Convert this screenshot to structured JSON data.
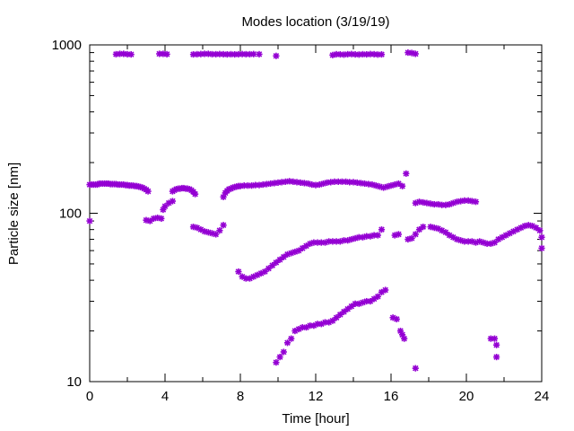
{
  "chart_data": {
    "type": "scatter",
    "title": "Modes location (3/19/19)",
    "xlabel": "Time [hour]",
    "ylabel": "Particle size [nm]",
    "xlim": [
      0,
      24
    ],
    "ylim": [
      10,
      1000
    ],
    "yscale": "log",
    "xticks": [
      0,
      4,
      8,
      12,
      16,
      20,
      24
    ],
    "yticks": [
      10,
      100,
      1000
    ],
    "grid": false,
    "marker": "asterisk",
    "color": "#9400D3",
    "series": [
      {
        "points": [
          [
            0.0,
            148
          ],
          [
            0.1,
            148
          ],
          [
            0.2,
            148
          ],
          [
            0.3,
            148
          ],
          [
            0.4,
            148
          ],
          [
            0.5,
            150
          ],
          [
            0.6,
            150
          ],
          [
            0.7,
            150
          ],
          [
            0.8,
            150
          ],
          [
            0.9,
            150
          ],
          [
            1.0,
            150
          ],
          [
            1.1,
            149
          ],
          [
            1.2,
            149
          ],
          [
            1.3,
            149
          ],
          [
            1.4,
            149
          ],
          [
            1.5,
            148
          ],
          [
            1.6,
            148
          ],
          [
            1.7,
            148
          ],
          [
            1.8,
            148
          ],
          [
            1.9,
            147
          ],
          [
            2.0,
            147
          ],
          [
            2.1,
            146
          ],
          [
            2.2,
            146
          ],
          [
            2.3,
            146
          ],
          [
            2.4,
            145
          ],
          [
            2.5,
            145
          ],
          [
            2.6,
            144
          ],
          [
            2.7,
            143
          ],
          [
            2.8,
            142
          ],
          [
            2.9,
            140
          ],
          [
            3.0,
            138
          ],
          [
            3.1,
            135
          ],
          [
            4.4,
            135
          ],
          [
            4.5,
            137
          ],
          [
            4.6,
            139
          ],
          [
            4.7,
            140
          ],
          [
            4.8,
            140
          ],
          [
            4.9,
            141
          ],
          [
            5.0,
            141
          ],
          [
            5.1,
            140
          ],
          [
            5.2,
            140
          ],
          [
            5.3,
            139
          ],
          [
            5.4,
            137
          ],
          [
            5.5,
            134
          ],
          [
            5.6,
            130
          ],
          [
            7.1,
            125
          ],
          [
            7.2,
            132
          ],
          [
            7.3,
            136
          ],
          [
            7.4,
            139
          ],
          [
            7.5,
            140
          ],
          [
            7.6,
            142
          ],
          [
            7.7,
            143
          ],
          [
            7.8,
            144
          ],
          [
            7.9,
            145
          ],
          [
            8.0,
            145
          ],
          [
            8.2,
            146
          ],
          [
            8.4,
            146
          ],
          [
            8.6,
            146
          ],
          [
            8.8,
            147
          ],
          [
            9.0,
            147
          ],
          [
            9.2,
            148
          ],
          [
            9.4,
            149
          ],
          [
            9.6,
            150
          ],
          [
            9.8,
            151
          ],
          [
            10.0,
            152
          ],
          [
            10.2,
            153
          ],
          [
            10.4,
            154
          ],
          [
            10.6,
            155
          ],
          [
            10.8,
            154
          ],
          [
            11.0,
            153
          ],
          [
            11.2,
            152
          ],
          [
            11.4,
            151
          ],
          [
            11.6,
            150
          ],
          [
            11.8,
            148
          ],
          [
            12.0,
            147
          ],
          [
            12.2,
            148
          ],
          [
            12.4,
            150
          ],
          [
            12.6,
            152
          ],
          [
            12.8,
            153
          ],
          [
            13.0,
            154
          ],
          [
            13.2,
            154
          ],
          [
            13.4,
            154
          ],
          [
            13.6,
            154
          ],
          [
            13.8,
            153
          ],
          [
            14.0,
            153
          ],
          [
            14.2,
            152
          ],
          [
            14.4,
            151
          ],
          [
            14.6,
            150
          ],
          [
            14.8,
            149
          ],
          [
            15.0,
            148
          ],
          [
            15.2,
            146
          ],
          [
            15.4,
            144
          ],
          [
            15.6,
            142
          ],
          [
            15.8,
            144
          ],
          [
            16.0,
            146
          ],
          [
            16.2,
            148
          ],
          [
            16.4,
            150
          ],
          [
            16.6,
            145
          ],
          [
            16.8,
            172
          ],
          [
            17.3,
            115
          ],
          [
            17.5,
            117
          ],
          [
            17.7,
            116
          ],
          [
            17.9,
            115
          ],
          [
            18.1,
            114
          ],
          [
            18.3,
            113
          ],
          [
            18.5,
            113
          ],
          [
            18.7,
            112
          ],
          [
            18.9,
            112
          ],
          [
            19.1,
            113
          ],
          [
            19.3,
            115
          ],
          [
            19.5,
            117
          ],
          [
            19.7,
            118
          ],
          [
            19.9,
            119
          ],
          [
            20.1,
            119
          ],
          [
            20.3,
            118
          ],
          [
            20.5,
            117
          ]
        ]
      },
      {
        "points": [
          [
            0.0,
            90
          ],
          [
            3.0,
            91
          ],
          [
            3.2,
            90
          ],
          [
            3.4,
            93
          ],
          [
            3.6,
            94
          ],
          [
            3.8,
            93
          ],
          [
            3.9,
            105
          ],
          [
            4.0,
            110
          ],
          [
            4.2,
            115
          ],
          [
            4.4,
            118
          ],
          [
            5.5,
            83
          ],
          [
            5.7,
            82
          ],
          [
            5.9,
            80
          ],
          [
            6.1,
            78
          ],
          [
            6.3,
            77
          ],
          [
            6.5,
            76
          ],
          [
            6.7,
            75
          ],
          [
            6.9,
            79
          ],
          [
            7.1,
            85
          ],
          [
            7.9,
            45
          ],
          [
            8.1,
            42
          ],
          [
            8.3,
            41
          ],
          [
            8.5,
            41
          ],
          [
            8.7,
            42
          ],
          [
            8.9,
            43
          ],
          [
            9.1,
            44
          ],
          [
            9.3,
            45
          ],
          [
            9.5,
            47
          ],
          [
            9.7,
            49
          ],
          [
            9.9,
            51
          ],
          [
            10.1,
            53
          ],
          [
            10.3,
            55
          ],
          [
            10.5,
            57
          ],
          [
            10.7,
            58
          ],
          [
            10.9,
            59
          ],
          [
            11.1,
            60
          ],
          [
            11.3,
            62
          ],
          [
            11.5,
            64
          ],
          [
            11.7,
            66
          ],
          [
            11.9,
            67
          ],
          [
            12.1,
            67
          ],
          [
            12.3,
            67
          ],
          [
            12.5,
            67
          ],
          [
            12.7,
            68
          ],
          [
            12.9,
            68
          ],
          [
            13.1,
            68
          ],
          [
            13.3,
            68
          ],
          [
            13.5,
            69
          ],
          [
            13.7,
            69
          ],
          [
            13.9,
            70
          ],
          [
            14.1,
            71
          ],
          [
            14.3,
            72
          ],
          [
            14.5,
            72
          ],
          [
            14.7,
            73
          ],
          [
            14.9,
            73
          ],
          [
            15.1,
            74
          ],
          [
            15.3,
            74
          ],
          [
            15.5,
            80
          ],
          [
            16.2,
            74
          ],
          [
            16.4,
            75
          ],
          [
            16.9,
            70
          ],
          [
            17.1,
            71
          ],
          [
            17.3,
            75
          ],
          [
            17.5,
            80
          ],
          [
            17.7,
            83
          ],
          [
            18.1,
            83
          ],
          [
            18.3,
            82
          ],
          [
            18.5,
            81
          ],
          [
            18.7,
            79
          ],
          [
            18.9,
            77
          ],
          [
            19.1,
            74
          ],
          [
            19.3,
            72
          ],
          [
            19.5,
            70
          ],
          [
            19.7,
            69
          ],
          [
            19.9,
            68
          ],
          [
            20.1,
            68
          ],
          [
            20.3,
            68
          ],
          [
            20.5,
            67
          ],
          [
            20.7,
            68
          ],
          [
            20.9,
            67
          ],
          [
            21.1,
            66
          ],
          [
            21.3,
            66
          ],
          [
            21.5,
            67
          ],
          [
            21.7,
            70
          ],
          [
            21.9,
            72
          ],
          [
            22.1,
            74
          ],
          [
            22.3,
            76
          ],
          [
            22.5,
            78
          ],
          [
            22.7,
            80
          ],
          [
            22.9,
            82
          ],
          [
            23.1,
            84
          ],
          [
            23.3,
            85
          ],
          [
            23.5,
            84
          ],
          [
            23.7,
            82
          ],
          [
            23.9,
            79
          ],
          [
            24.0,
            72
          ],
          [
            24.0,
            62
          ]
        ]
      },
      {
        "points": [
          [
            9.9,
            13
          ],
          [
            10.1,
            14
          ],
          [
            10.3,
            15
          ],
          [
            10.5,
            17
          ],
          [
            10.7,
            18
          ],
          [
            10.9,
            20
          ],
          [
            11.1,
            20.5
          ],
          [
            11.3,
            21
          ],
          [
            11.5,
            21
          ],
          [
            11.7,
            21.5
          ],
          [
            11.9,
            21.5
          ],
          [
            12.1,
            22
          ],
          [
            12.3,
            22
          ],
          [
            12.5,
            22.5
          ],
          [
            12.7,
            22.5
          ],
          [
            12.9,
            23
          ],
          [
            13.1,
            24
          ],
          [
            13.3,
            25
          ],
          [
            13.5,
            26
          ],
          [
            13.7,
            27
          ],
          [
            13.9,
            28
          ],
          [
            14.1,
            29
          ],
          [
            14.3,
            29
          ],
          [
            14.5,
            29.5
          ],
          [
            14.7,
            30
          ],
          [
            14.9,
            30
          ],
          [
            15.1,
            31
          ],
          [
            15.3,
            32
          ],
          [
            15.5,
            34
          ],
          [
            15.7,
            35
          ],
          [
            16.1,
            24
          ],
          [
            16.3,
            23.5
          ],
          [
            16.5,
            20
          ],
          [
            16.6,
            19
          ],
          [
            16.7,
            18
          ],
          [
            17.3,
            12
          ],
          [
            21.3,
            18
          ],
          [
            21.5,
            18
          ],
          [
            21.6,
            16.5
          ],
          [
            21.6,
            14
          ]
        ]
      },
      {
        "points": [
          [
            1.4,
            880
          ],
          [
            1.6,
            885
          ],
          [
            1.8,
            885
          ],
          [
            2.0,
            880
          ],
          [
            2.2,
            878
          ],
          [
            3.7,
            885
          ],
          [
            3.9,
            885
          ],
          [
            4.1,
            880
          ],
          [
            5.5,
            878
          ],
          [
            5.7,
            880
          ],
          [
            5.9,
            882
          ],
          [
            6.1,
            885
          ],
          [
            6.3,
            885
          ],
          [
            6.5,
            880
          ],
          [
            6.7,
            880
          ],
          [
            6.9,
            882
          ],
          [
            7.1,
            880
          ],
          [
            7.3,
            878
          ],
          [
            7.5,
            880
          ],
          [
            7.7,
            878
          ],
          [
            7.9,
            880
          ],
          [
            8.1,
            882
          ],
          [
            8.3,
            880
          ],
          [
            8.5,
            880
          ],
          [
            8.7,
            882
          ],
          [
            9.0,
            880
          ],
          [
            9.9,
            860
          ],
          [
            12.9,
            870
          ],
          [
            13.1,
            880
          ],
          [
            13.3,
            878
          ],
          [
            13.5,
            875
          ],
          [
            13.7,
            880
          ],
          [
            13.9,
            882
          ],
          [
            14.1,
            878
          ],
          [
            14.3,
            876
          ],
          [
            14.5,
            880
          ],
          [
            14.7,
            878
          ],
          [
            14.9,
            882
          ],
          [
            15.1,
            880
          ],
          [
            15.3,
            876
          ],
          [
            15.5,
            878
          ],
          [
            16.9,
            900
          ],
          [
            17.1,
            895
          ],
          [
            17.3,
            885
          ]
        ]
      }
    ]
  }
}
